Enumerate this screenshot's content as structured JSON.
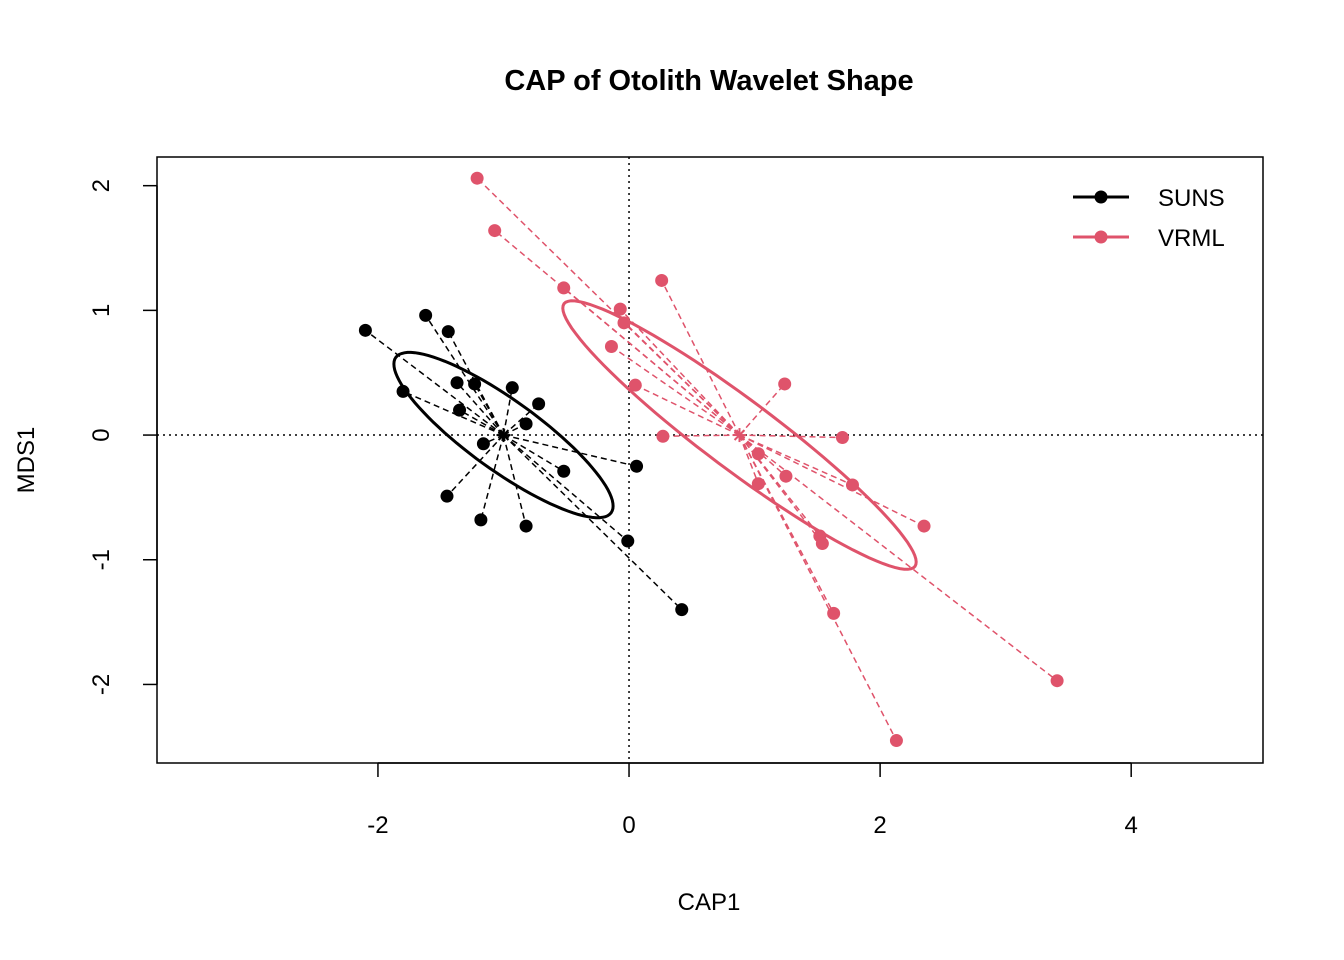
{
  "chart_data": {
    "type": "scatter",
    "title": "CAP of Otolith Wavelet Shape",
    "xlabel": "CAP1",
    "ylabel": "MDS1",
    "xlim": [
      -3.76,
      5.05
    ],
    "ylim": [
      -2.63,
      2.23
    ],
    "x_ticks": [
      -2,
      0,
      2,
      4
    ],
    "y_ticks": [
      -2,
      -1,
      0,
      1,
      2
    ],
    "reference_lines": {
      "x": 0,
      "y": 0,
      "style": "dotted"
    },
    "legend": {
      "position": "top-right"
    },
    "series": [
      {
        "name": "SUNS",
        "color": "#000000",
        "centroid": [
          -1.0,
          0.0
        ],
        "ellipse": {
          "center": [
            -1.0,
            0.0
          ],
          "semi_major_axis": 1.06,
          "semi_minor_axis": 0.28,
          "angle_deg": -36
        },
        "points": [
          [
            -2.1,
            0.84
          ],
          [
            -1.62,
            0.96
          ],
          [
            -1.44,
            0.83
          ],
          [
            -1.8,
            0.35
          ],
          [
            -1.37,
            0.42
          ],
          [
            -1.23,
            0.41
          ],
          [
            -0.93,
            0.38
          ],
          [
            -0.72,
            0.25
          ],
          [
            -1.35,
            0.2
          ],
          [
            -0.82,
            0.09
          ],
          [
            -1.16,
            -0.07
          ],
          [
            -0.52,
            -0.29
          ],
          [
            0.06,
            -0.25
          ],
          [
            -1.45,
            -0.49
          ],
          [
            -1.18,
            -0.68
          ],
          [
            -0.82,
            -0.73
          ],
          [
            -0.01,
            -0.85
          ],
          [
            0.42,
            -1.4
          ]
        ]
      },
      {
        "name": "VRML",
        "color": "#DF536B",
        "centroid": [
          0.88,
          0.0
        ],
        "ellipse": {
          "center": [
            0.88,
            0.0
          ],
          "semi_major_axis": 1.75,
          "semi_minor_axis": 0.28,
          "angle_deg": -37
        },
        "points": [
          [
            -1.21,
            2.06
          ],
          [
            -1.07,
            1.64
          ],
          [
            0.26,
            1.24
          ],
          [
            -0.52,
            1.18
          ],
          [
            -0.07,
            1.01
          ],
          [
            -0.04,
            0.9
          ],
          [
            -0.14,
            0.71
          ],
          [
            0.05,
            0.4
          ],
          [
            1.24,
            0.41
          ],
          [
            0.27,
            -0.01
          ],
          [
            1.7,
            -0.02
          ],
          [
            1.03,
            -0.15
          ],
          [
            1.03,
            -0.39
          ],
          [
            1.25,
            -0.33
          ],
          [
            1.78,
            -0.4
          ],
          [
            2.35,
            -0.73
          ],
          [
            1.52,
            -0.81
          ],
          [
            1.54,
            -0.87
          ],
          [
            1.63,
            -1.43
          ],
          [
            3.41,
            -1.97
          ],
          [
            2.13,
            -2.45
          ]
        ]
      }
    ]
  }
}
